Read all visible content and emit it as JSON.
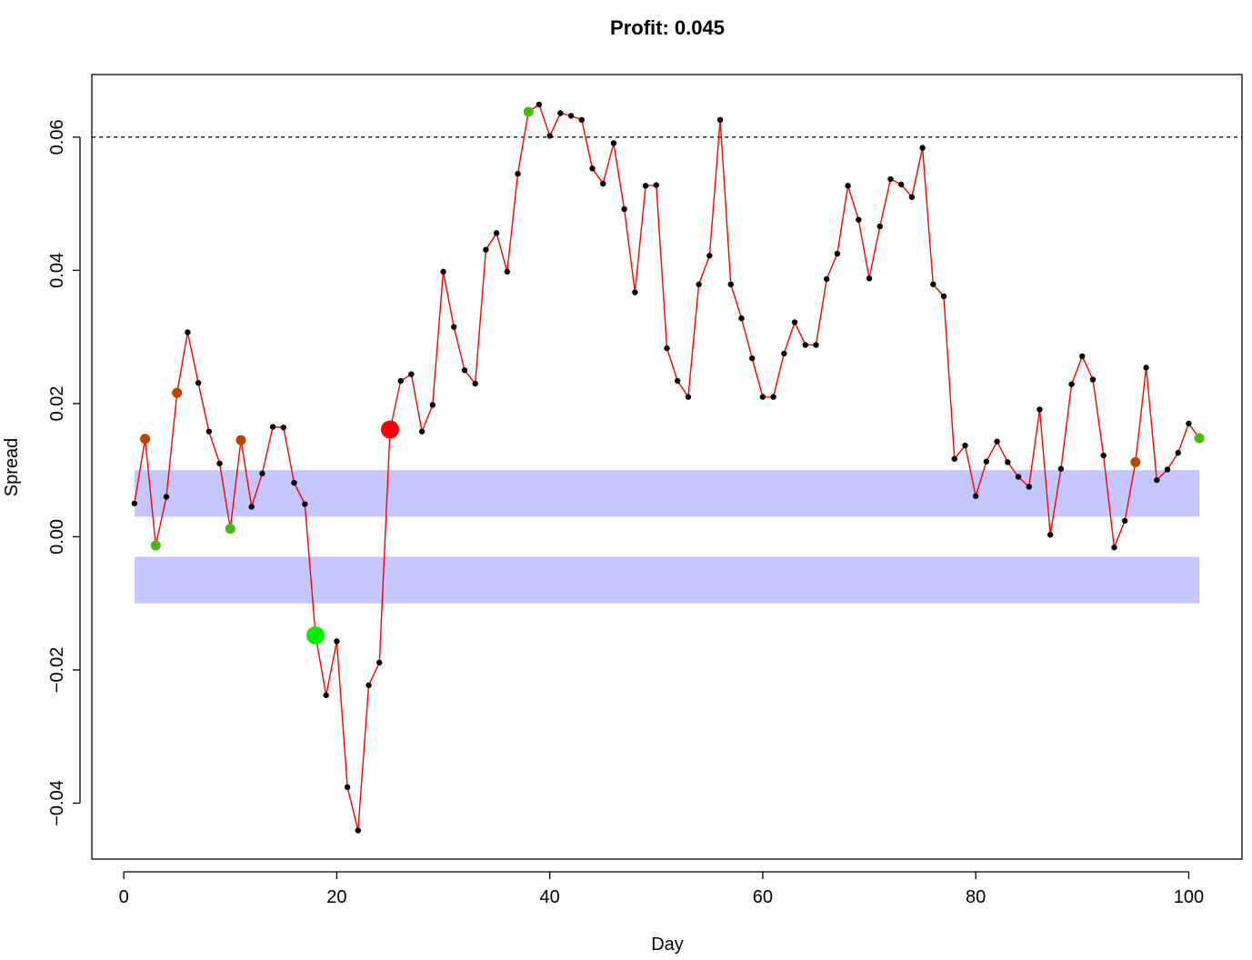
{
  "chart_data": {
    "type": "line",
    "title": "Profit:  0.045",
    "xlabel": "Day",
    "ylabel": "Spread",
    "xlim": [
      -3,
      105
    ],
    "ylim": [
      -0.0484,
      0.0694
    ],
    "x_ticks": [
      0,
      20,
      40,
      60,
      80,
      100
    ],
    "x_tick_labels": [
      "0",
      "20",
      "40",
      "60",
      "80",
      "100"
    ],
    "y_ticks": [
      -0.04,
      -0.02,
      0.0,
      0.02,
      0.04,
      0.06
    ],
    "y_tick_labels": [
      "−0.04",
      "−0.02",
      "0.00",
      "0.02",
      "0.04",
      "0.06"
    ],
    "grid": false,
    "line_color": "#ff0000",
    "point_color": "#000000",
    "band_color": "#c6c6ff",
    "threshold": 0.06,
    "bands": [
      {
        "x": [
          1,
          101
        ],
        "y": [
          0.003,
          0.01
        ]
      },
      {
        "x": [
          1,
          101
        ],
        "y": [
          -0.01,
          -0.003
        ]
      }
    ],
    "series": [
      {
        "x": [
          1,
          2,
          3,
          4,
          5,
          6,
          7,
          8,
          9,
          10,
          11,
          12,
          13,
          14,
          15,
          16,
          17,
          18,
          19,
          20,
          21,
          22,
          23,
          24,
          25,
          26,
          27,
          28,
          29,
          30,
          31,
          32,
          33,
          34,
          35,
          36,
          37,
          38,
          39,
          40,
          41,
          42,
          43,
          44,
          45,
          46,
          47,
          48,
          49,
          50,
          51,
          52,
          53,
          54,
          55,
          56,
          57,
          58,
          59,
          60,
          61,
          62,
          63,
          64,
          65,
          66,
          67,
          68,
          69,
          70,
          71,
          72,
          73,
          74,
          75,
          76,
          77,
          78,
          79,
          80,
          81,
          82,
          83,
          84,
          85,
          86,
          87,
          88,
          89,
          90,
          91,
          92,
          93,
          94,
          95,
          96,
          97,
          98,
          99,
          100,
          101
        ],
        "y": [
          0.005,
          0.0147,
          -0.0013,
          0.006,
          0.0216,
          0.0307,
          0.0231,
          0.0158,
          0.011,
          0.0012,
          0.0145,
          0.0045,
          0.0095,
          0.0165,
          0.0164,
          0.0081,
          0.0049,
          -0.0148,
          -0.0238,
          -0.0157,
          -0.0376,
          -0.0441,
          -0.0223,
          -0.0189,
          0.0161,
          0.0234,
          0.0244,
          0.0158,
          0.0198,
          0.0398,
          0.0315,
          0.025,
          0.023,
          0.0431,
          0.0456,
          0.0398,
          0.0545,
          0.0638,
          0.0649,
          0.0602,
          0.0636,
          0.0632,
          0.0626,
          0.0553,
          0.053,
          0.0591,
          0.0492,
          0.0367,
          0.0527,
          0.0528,
          0.0283,
          0.0234,
          0.021,
          0.0379,
          0.0422,
          0.0626,
          0.0379,
          0.0328,
          0.0268,
          0.021,
          0.021,
          0.0275,
          0.0322,
          0.0288,
          0.0288,
          0.0387,
          0.0425,
          0.0527,
          0.0476,
          0.0388,
          0.0466,
          0.0537,
          0.0529,
          0.051,
          0.0584,
          0.0379,
          0.0361,
          0.0117,
          0.0137,
          0.0061,
          0.0113,
          0.0143,
          0.0112,
          0.009,
          0.0075,
          0.0191,
          0.0003,
          0.0102,
          0.0229,
          0.0271,
          0.0236,
          0.0122,
          -0.0016,
          0.0024,
          0.0112,
          0.0254,
          0.0085,
          0.0101,
          0.0126,
          0.017,
          0.0148
        ]
      }
    ],
    "markers": [
      {
        "x": 2,
        "y": 0.0147,
        "color": "#bb4400",
        "size": "medium"
      },
      {
        "x": 3,
        "y": -0.0013,
        "color": "#44bb11",
        "size": "medium"
      },
      {
        "x": 5,
        "y": 0.0216,
        "color": "#bb4400",
        "size": "medium"
      },
      {
        "x": 10,
        "y": 0.0012,
        "color": "#44bb11",
        "size": "medium"
      },
      {
        "x": 11,
        "y": 0.0145,
        "color": "#bb4400",
        "size": "medium"
      },
      {
        "x": 18,
        "y": -0.0148,
        "color": "#00ee00",
        "size": "large"
      },
      {
        "x": 25,
        "y": 0.0161,
        "color": "#ff0000",
        "size": "large"
      },
      {
        "x": 38,
        "y": 0.0638,
        "color": "#44bb11",
        "size": "medium"
      },
      {
        "x": 95,
        "y": 0.0112,
        "color": "#bb4400",
        "size": "medium"
      },
      {
        "x": 101,
        "y": 0.0148,
        "color": "#44bb11",
        "size": "medium"
      }
    ]
  }
}
